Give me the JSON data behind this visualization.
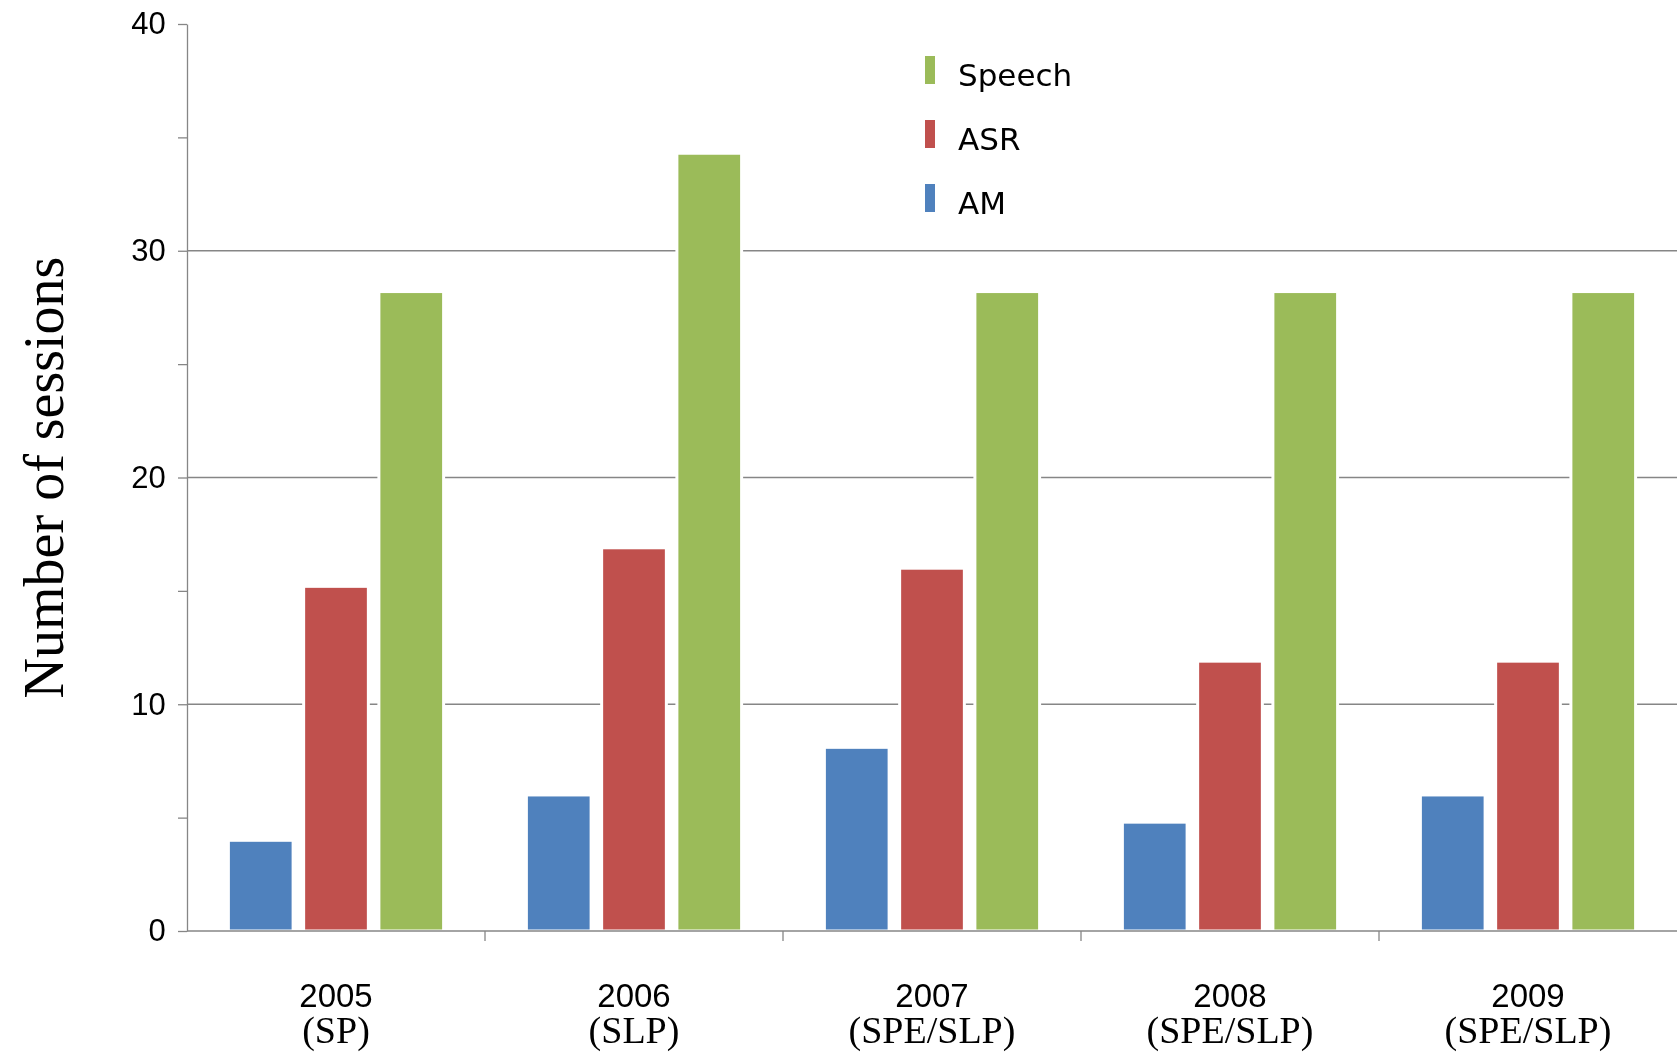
{
  "chart_data": {
    "type": "bar",
    "ylabel": "Number of  sessions",
    "categories": [
      "2005\n(SP)",
      "2006\n(SLP)",
      "2007\n(SPE/SLP)",
      "2008\n(SPE/SLP)",
      "2009\n(SPE/SLP)"
    ],
    "series": [
      {
        "name": "AM",
        "color": "#4f81bd",
        "values": [
          4,
          6,
          8.1,
          4.8,
          6
        ]
      },
      {
        "name": "ASR",
        "color": "#c0504d",
        "values": [
          15.2,
          16.9,
          16,
          11.9,
          11.9
        ]
      },
      {
        "name": "Speech",
        "color": "#9bbb59",
        "values": [
          28.2,
          34.3,
          28.2,
          28.2,
          28.2
        ]
      }
    ],
    "ylim": [
      0,
      40
    ],
    "yticks": [
      0,
      {
        "value": 5,
        "label": null
      },
      10,
      {
        "value": 15,
        "label": null
      },
      20,
      {
        "value": 25,
        "label": null
      },
      30,
      {
        "value": 35,
        "label": null
      },
      40
    ],
    "grid": "y",
    "legend": "top"
  }
}
